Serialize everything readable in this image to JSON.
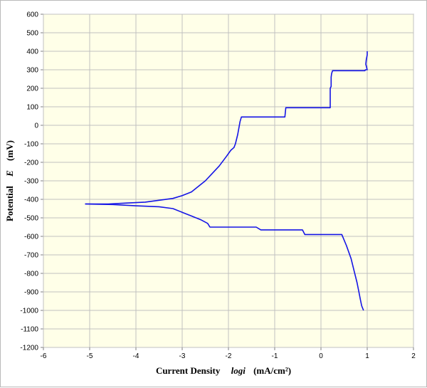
{
  "chart_data": {
    "type": "line",
    "title": "",
    "xlabel": {
      "prefix": "Current Density",
      "var": "logi",
      "unit": "(mA/cm²)"
    },
    "ylabel": {
      "prefix": "Potential",
      "var": "E",
      "unit": "(mV)"
    },
    "xlim": [
      -6,
      2
    ],
    "ylim": [
      -1200,
      600
    ],
    "xticks": [
      -6,
      -5,
      -4,
      -3,
      -2,
      -1,
      0,
      1,
      2
    ],
    "yticks": [
      600,
      500,
      400,
      300,
      200,
      100,
      0,
      -100,
      -200,
      -300,
      -400,
      -500,
      -600,
      -700,
      -800,
      -900,
      -1000,
      -1100,
      -1200
    ],
    "grid": true,
    "legend": "none",
    "colors": {
      "plot_bg": "#ffffe8",
      "grid": "#c0c0c0",
      "line": "#1414e6"
    },
    "series": [
      {
        "values_x": [
          -5.1,
          -4.6,
          -4.2,
          -3.8,
          -3.5,
          -3.2,
          -3.0,
          -2.8,
          -2.65,
          -2.5,
          -2.35,
          -2.2,
          -2.05,
          -1.95,
          -1.88,
          -1.85,
          -1.8,
          -1.75,
          -1.72,
          -0.78,
          -0.76,
          0.2,
          0.2,
          0.22,
          0.22,
          0.23,
          0.25,
          0.95,
          0.96,
          1.0,
          0.97,
          0.98,
          1.0,
          1.0
        ],
        "values_y": [
          -425,
          -425,
          -420,
          -415,
          -405,
          -395,
          -380,
          -360,
          -330,
          -300,
          -260,
          -220,
          -170,
          -135,
          -120,
          -100,
          -50,
          20,
          45,
          45,
          95,
          95,
          200,
          210,
          260,
          280,
          295,
          295,
          300,
          300,
          330,
          355,
          380,
          400
        ]
      },
      {
        "values_x": [
          -5.1,
          -4.5,
          -4.0,
          -3.5,
          -3.2,
          -3.0,
          -2.8,
          -2.6,
          -2.45,
          -2.4,
          -1.4,
          -1.3,
          -0.4,
          -0.35,
          0.45,
          0.55,
          0.65,
          0.72,
          0.78,
          0.82,
          0.85,
          0.88,
          0.92
        ],
        "values_y": [
          -425,
          -428,
          -435,
          -440,
          -450,
          -470,
          -490,
          -510,
          -530,
          -550,
          -550,
          -565,
          -565,
          -590,
          -590,
          -650,
          -720,
          -790,
          -850,
          -900,
          -940,
          -975,
          -1000
        ]
      }
    ]
  }
}
